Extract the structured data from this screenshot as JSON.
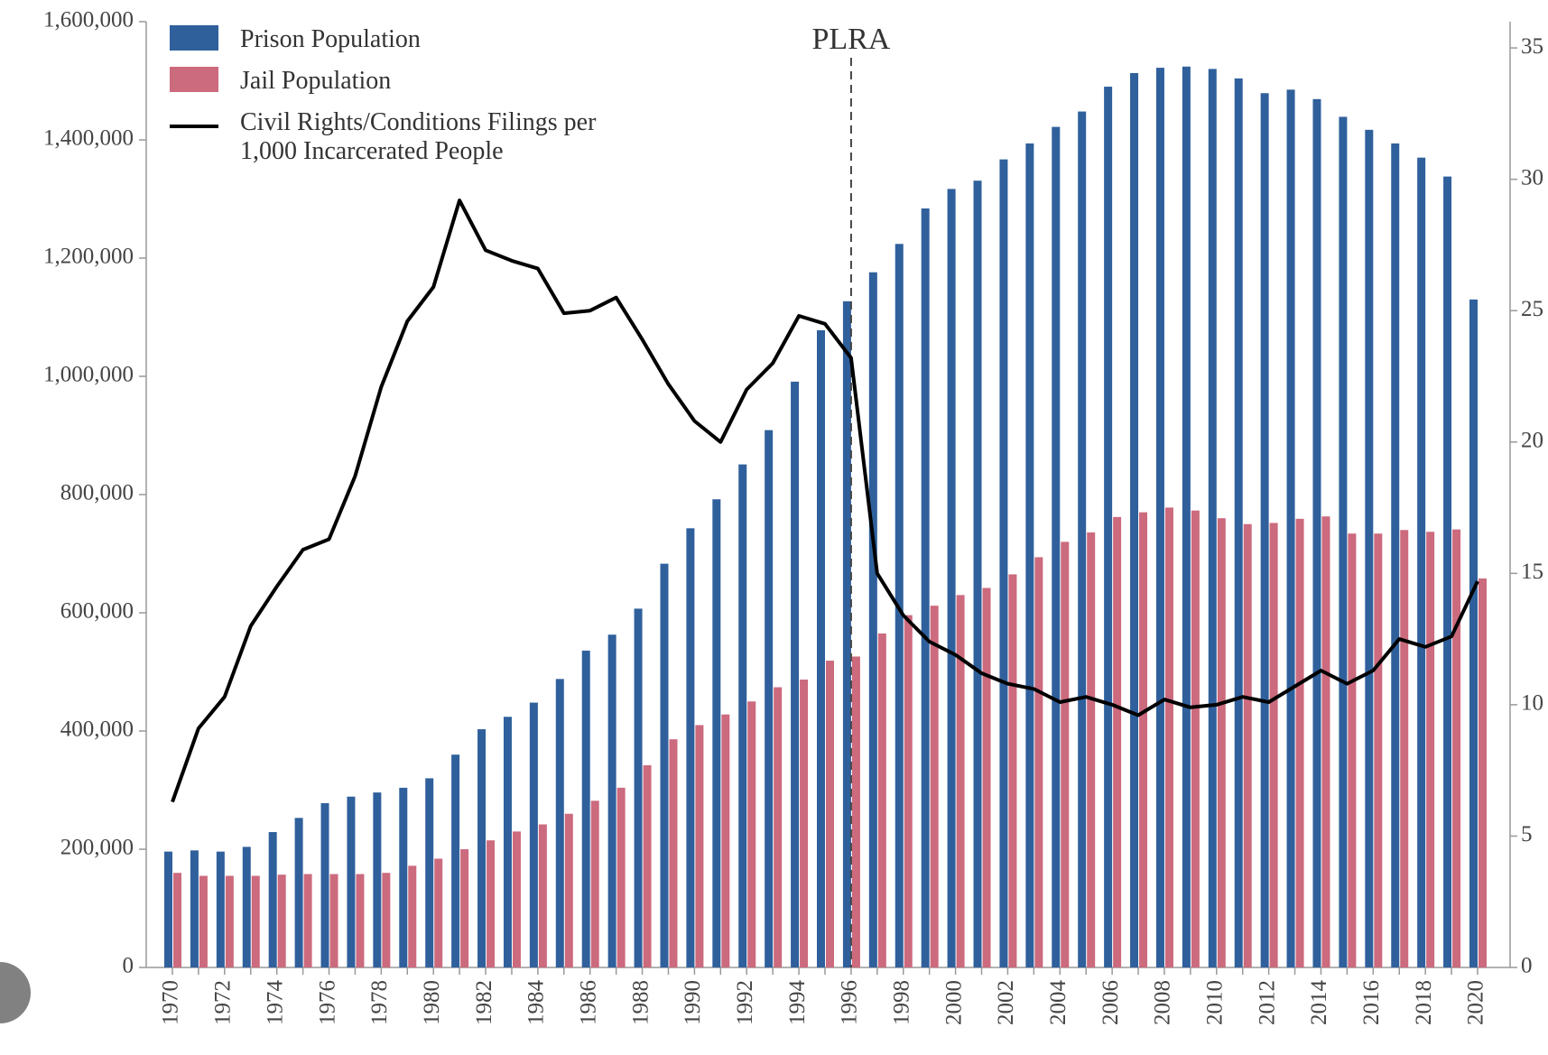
{
  "chart_data": {
    "type": "bar",
    "categories": [
      "1970",
      null,
      "1972",
      null,
      "1974",
      null,
      "1976",
      null,
      "1978",
      null,
      "1980",
      null,
      "1982",
      null,
      "1984",
      null,
      "1986",
      null,
      "1988",
      null,
      "1990",
      null,
      "1992",
      null,
      "1994",
      null,
      "1996",
      null,
      "1998",
      null,
      "2000",
      null,
      "2002",
      null,
      "2004",
      null,
      "2006",
      null,
      "2008",
      null,
      "2010",
      null,
      "2012",
      null,
      "2014",
      null,
      "2016",
      null,
      "2018",
      null,
      "2020"
    ],
    "series": [
      {
        "name": "Prison Population",
        "type": "bar",
        "color": "#2f609c",
        "values": [
          196000,
          198000,
          196000,
          204000,
          229000,
          253000,
          278000,
          289000,
          296000,
          304000,
          320000,
          360000,
          403000,
          424000,
          448000,
          488000,
          536000,
          563000,
          607000,
          683000,
          743000,
          792000,
          851000,
          909000,
          991000,
          1078000,
          1127000,
          1176000,
          1224000,
          1284000,
          1317000,
          1331000,
          1367000,
          1394000,
          1422000,
          1448000,
          1490000,
          1513000,
          1522000,
          1524000,
          1520000,
          1504000,
          1479000,
          1485000,
          1469000,
          1439000,
          1417000,
          1394000,
          1370000,
          1338000,
          1130000
        ]
      },
      {
        "name": "Jail Population",
        "type": "bar",
        "color": "#cc6a7e",
        "values": [
          160000,
          155000,
          155000,
          155000,
          157000,
          158000,
          158000,
          158000,
          160000,
          172000,
          184000,
          200000,
          215000,
          230000,
          242000,
          260000,
          282000,
          304000,
          342000,
          386000,
          410000,
          428000,
          450000,
          474000,
          487000,
          519000,
          526000,
          565000,
          596000,
          612000,
          630000,
          642000,
          665000,
          694000,
          720000,
          736000,
          762000,
          770000,
          778000,
          773000,
          760000,
          750000,
          752000,
          759000,
          763000,
          734000,
          734000,
          740000,
          737000,
          741000,
          658000
        ]
      },
      {
        "name": "Civil Rights/Conditions Filings per 1,000 Incarcerated People",
        "type": "line",
        "axis": "y2",
        "color": "#000000",
        "values": [
          6.3,
          9.1,
          10.3,
          13.0,
          14.5,
          15.9,
          16.3,
          18.7,
          22.1,
          24.6,
          25.9,
          29.2,
          27.3,
          26.9,
          26.6,
          24.9,
          25.0,
          25.5,
          23.9,
          22.2,
          20.8,
          20.0,
          22.0,
          23.0,
          24.8,
          24.5,
          23.2,
          15.0,
          13.4,
          12.4,
          11.9,
          11.2,
          10.8,
          10.6,
          10.1,
          10.3,
          10.0,
          9.6,
          10.2,
          9.9,
          10.0,
          10.3,
          10.1,
          10.7,
          11.3,
          10.8,
          11.3,
          12.5,
          12.2,
          12.6,
          14.7
        ]
      }
    ],
    "ylim": [
      0,
      1600000
    ],
    "yticks": [
      0,
      {
        "value": 200000,
        "label": "200,000"
      },
      {
        "value": 400000,
        "label": "400,000"
      },
      {
        "value": 600000,
        "label": "600,000"
      },
      {
        "value": 800000,
        "label": "800,000"
      },
      {
        "value": 1000000,
        "label": "1,000,000"
      },
      {
        "value": 1200000,
        "label": "1,200,000"
      },
      {
        "value": 1400000,
        "label": "1,400,000"
      },
      {
        "value": 1600000,
        "label": "1,600,000"
      }
    ],
    "y2lim": [
      0,
      36
    ],
    "y2ticks": [
      0,
      5,
      10,
      15,
      20,
      25,
      30,
      35
    ],
    "annotations": [
      {
        "text": "PLRA",
        "x": "1996"
      }
    ],
    "legend": "upper left",
    "grid": false
  }
}
